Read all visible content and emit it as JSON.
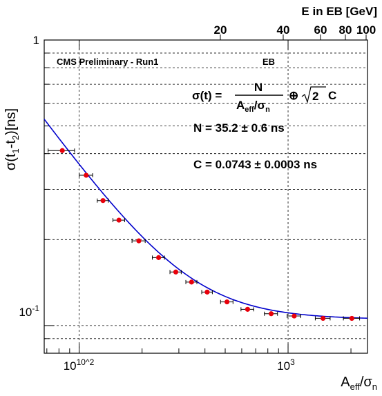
{
  "chart_data": {
    "type": "scatter",
    "title": "",
    "xlabel": "A_eff/σ_n",
    "ylabel": "σ(t_1-t_2)[ns]",
    "x_scale": "log",
    "y_scale": "log",
    "xlim": [
      68,
      2400
    ],
    "ylim": [
      0.08,
      1.0
    ],
    "x_tick_labels": [
      "10^2",
      "10^3"
    ],
    "y_tick_labels": [
      "1",
      "10^-1"
    ],
    "top_axis": {
      "label": "E in EB [GeV]",
      "ticks": [
        "20",
        "40",
        "60",
        "80",
        "100"
      ]
    },
    "grid": true,
    "series": [
      {
        "type": "scatter",
        "color": "#e8000b",
        "x": [
          83,
          108,
          130,
          155,
          193,
          240,
          290,
          345,
          410,
          510,
          640,
          830,
          1070,
          1470,
          2020
        ],
        "y": [
          0.41,
          0.336,
          0.274,
          0.234,
          0.198,
          0.173,
          0.154,
          0.142,
          0.131,
          0.121,
          0.114,
          0.11,
          0.108,
          0.106,
          0.106
        ],
        "x_err": [
          12,
          8,
          8,
          10,
          14,
          16,
          18,
          21,
          24,
          35,
          45,
          60,
          80,
          120,
          180
        ]
      },
      {
        "type": "line",
        "color": "#0000cc",
        "formula": "sqrt((35.2/x)^2 + 2*0.0743^2)"
      }
    ],
    "annotations": {
      "preliminary": "CMS Preliminary - Run1",
      "region": "EB",
      "fit_N": "N = 35.2",
      "fit_N_err": "0.6 ns",
      "fit_C": "C = 0.0743",
      "fit_C_err": "0.0003 ns",
      "pm": "±"
    },
    "formula_text": {
      "lhs": "σ(t) =",
      "num": "N",
      "den_A": "A",
      "den_eff": "eff",
      "den_slash": "/σ",
      "den_n": "n",
      "oplus": "⊕",
      "sqrt_arg": "2C"
    }
  }
}
